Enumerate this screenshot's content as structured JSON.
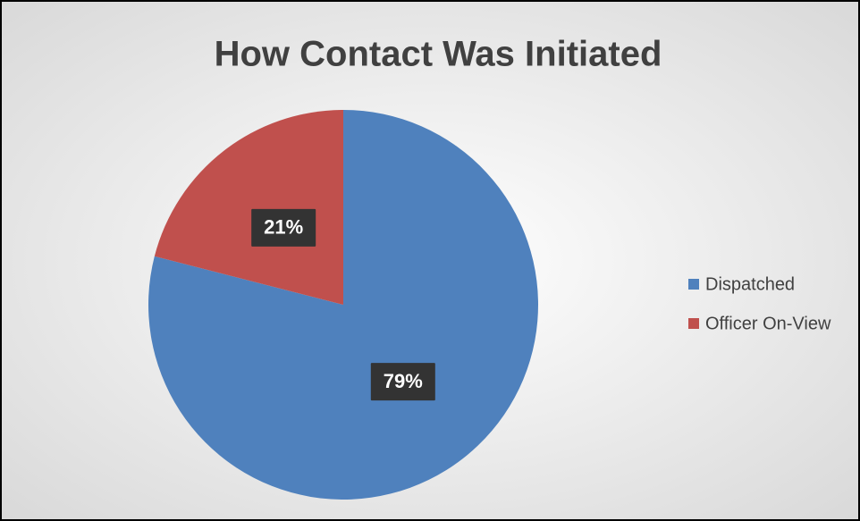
{
  "chart_data": {
    "type": "pie",
    "title": "How Contact Was Initiated",
    "categories": [
      "Dispatched",
      "Officer On-View"
    ],
    "values": [
      79,
      21
    ],
    "value_labels": [
      "79%",
      "21%"
    ],
    "colors": [
      "#4f81bd",
      "#c0504d"
    ],
    "legend": "right"
  }
}
